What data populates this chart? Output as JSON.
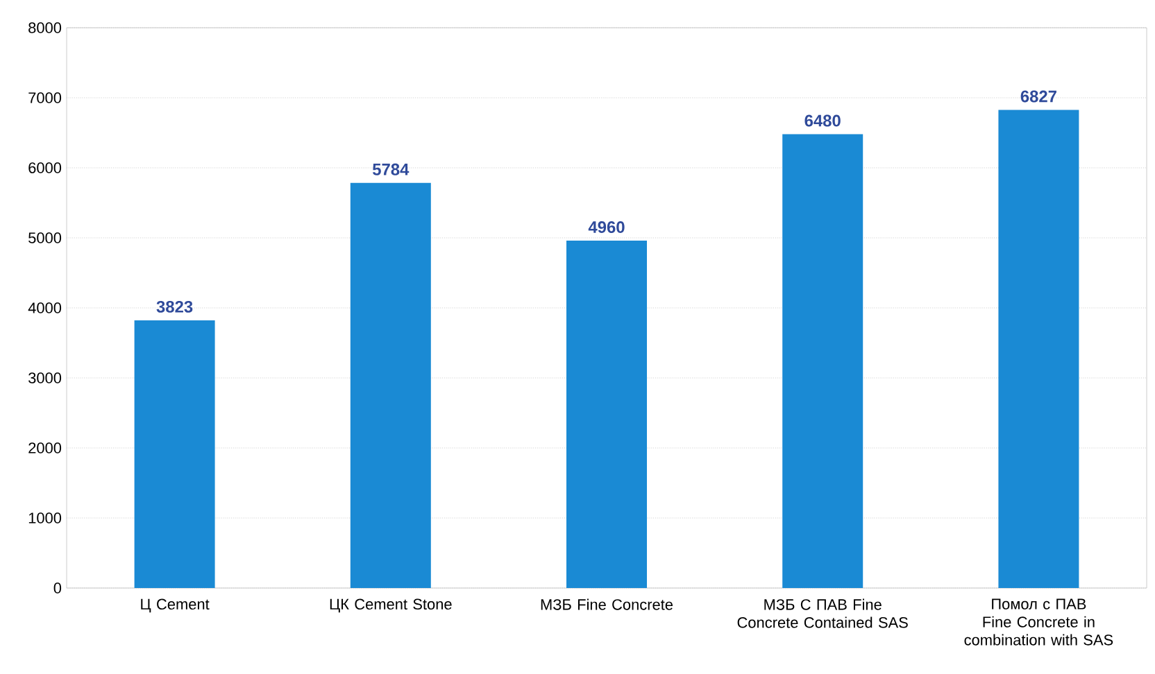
{
  "chart_data": {
    "type": "bar",
    "categories": [
      "Ц Cement",
      "ЦК Cement Stone",
      "МЗБ Fine Concrete",
      "МЗБ С ПАВ Fine Concrete Contained SAS",
      "Помол с ПАВ Fine Concrete in combination with SAS"
    ],
    "values": [
      3823,
      5784,
      4960,
      6480,
      6827
    ],
    "color": "#1a8ad4",
    "ylim": [
      0,
      8000
    ],
    "yticks": [
      0,
      1000,
      2000,
      3000,
      4000,
      5000,
      6000,
      7000,
      8000
    ],
    "grid": "y",
    "data_labels": true
  }
}
